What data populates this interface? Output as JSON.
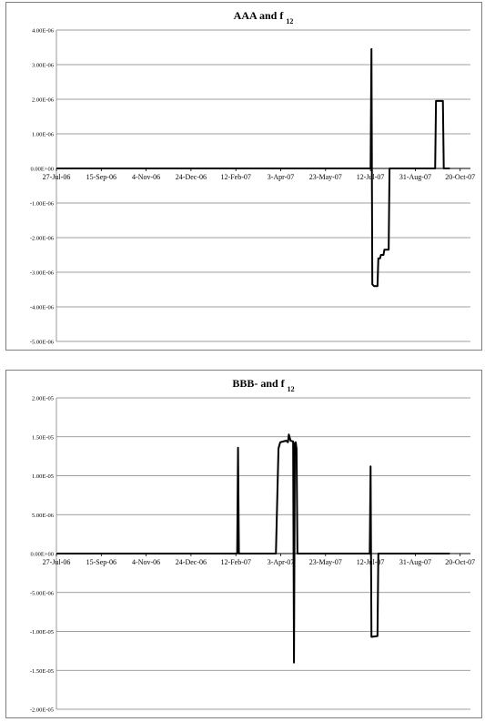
{
  "chart_data": [
    {
      "type": "line",
      "title": "AAA and f",
      "title_subscript": "12",
      "xlabel": "",
      "ylabel": "",
      "y_ticks": [
        "4.00E-06",
        "3.00E-06",
        "2.00E-06",
        "1.00E-06",
        "0.00E+00",
        "-1.00E-06",
        "-2.00E-06",
        "-3.00E-06",
        "-4.00E-06",
        "-5.00E-06"
      ],
      "ylim": [
        -5e-06,
        4e-06
      ],
      "x_ticks": [
        "27-Jul-06",
        "15-Sep-06",
        "4-Nov-06",
        "24-Dec-06",
        "12-Feb-07",
        "3-Apr-07",
        "23-May-07",
        "12-Jul-07",
        "31-Aug-07",
        "20-Oct-07"
      ],
      "xlim": [
        "2006-07-27",
        "2007-11-20"
      ],
      "grid": true,
      "legend": "none",
      "series": [
        {
          "color": "#000000",
          "points": [
            [
              "2006-07-27",
              0
            ],
            [
              "2007-07-27",
              0
            ],
            [
              "2007-07-28",
              3.45e-06
            ],
            [
              "2007-07-29",
              -3.35e-06
            ],
            [
              "2007-07-31",
              -3.4e-06
            ],
            [
              "2007-08-04",
              -3.4e-06
            ],
            [
              "2007-08-05",
              -2.6e-06
            ],
            [
              "2007-08-07",
              -2.6e-06
            ],
            [
              "2007-08-08",
              -2.5e-06
            ],
            [
              "2007-08-11",
              -2.5e-06
            ],
            [
              "2007-08-12",
              -2.35e-06
            ],
            [
              "2007-08-17",
              -2.35e-06
            ],
            [
              "2007-08-18",
              0
            ],
            [
              "2007-10-10",
              0
            ],
            [
              "2007-10-11",
              1.95e-06
            ],
            [
              "2007-10-19",
              1.95e-06
            ],
            [
              "2007-10-20",
              0
            ],
            [
              "2007-10-27",
              0
            ]
          ]
        }
      ]
    },
    {
      "type": "line",
      "title": "BBB- and f",
      "title_subscript": "12",
      "xlabel": "",
      "ylabel": "",
      "y_ticks": [
        "2.00E-05",
        "1.50E-05",
        "1.00E-05",
        "5.00E-06",
        "0.00E+00",
        "-5.00E-06",
        "-1.00E-05",
        "-1.50E-05",
        "-2.00E-05"
      ],
      "ylim": [
        -2e-05,
        2e-05
      ],
      "x_ticks": [
        "27-Jul-06",
        "15-Sep-06",
        "4-Nov-06",
        "24-Dec-06",
        "12-Feb-07",
        "3-Apr-07",
        "23-May-07",
        "12-Jul-07",
        "31-Aug-07",
        "20-Oct-07"
      ],
      "xlim": [
        "2006-07-27",
        "2007-11-20"
      ],
      "grid": true,
      "legend": "none",
      "series": [
        {
          "color": "#000000",
          "points": [
            [
              "2006-07-27",
              0
            ],
            [
              "2007-02-22",
              0
            ],
            [
              "2007-02-23",
              1.36e-05
            ],
            [
              "2007-02-24",
              0
            ],
            [
              "2007-04-08",
              0
            ],
            [
              "2007-04-11",
              1.35e-05
            ],
            [
              "2007-04-13",
              1.43e-05
            ],
            [
              "2007-04-20",
              1.45e-05
            ],
            [
              "2007-04-22",
              1.43e-05
            ],
            [
              "2007-04-23",
              1.53e-05
            ],
            [
              "2007-04-25",
              1.45e-05
            ],
            [
              "2007-04-28",
              1.44e-05
            ],
            [
              "2007-04-29",
              -1.4e-05
            ],
            [
              "2007-04-30",
              1.42e-05
            ],
            [
              "2007-05-01",
              1.43e-05
            ],
            [
              "2007-05-02",
              1.35e-05
            ],
            [
              "2007-05-03",
              0
            ],
            [
              "2007-07-26",
              0
            ],
            [
              "2007-07-27",
              1.12e-05
            ],
            [
              "2007-07-28",
              -1.07e-05
            ],
            [
              "2007-08-04",
              -1.06e-05
            ],
            [
              "2007-08-05",
              0
            ],
            [
              "2007-10-27",
              0
            ]
          ]
        }
      ]
    }
  ]
}
